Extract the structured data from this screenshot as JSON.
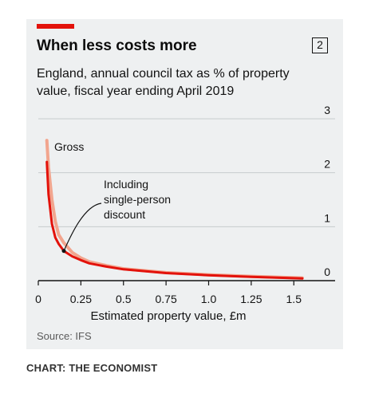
{
  "header": {
    "title": "When less costs more",
    "chart_number": "2",
    "subtitle": "England, annual council tax as % of property value, fiscal year ending April 2019"
  },
  "source": "Source: IFS",
  "credit": "CHART: THE ECONOMIST",
  "colors": {
    "background": "#eef0f1",
    "accent_red": "#e3120b",
    "gross_line": "#f2a58e",
    "net_line": "#e3120b",
    "gridline": "#c6cbcd"
  },
  "chart_data": {
    "type": "line",
    "title": "When less costs more",
    "subtitle": "England, annual council tax as % of property value, fiscal year ending April 2019",
    "xlabel": "Estimated property value, £m",
    "ylabel": "",
    "xlim": [
      0,
      1.6
    ],
    "ylim": [
      0,
      3
    ],
    "x_ticks": [
      "0",
      "0.25",
      "0.5",
      "0.75",
      "1.0",
      "1.25",
      "1.5"
    ],
    "y_ticks": [
      "0",
      "1",
      "2",
      "3"
    ],
    "grid": "horizontal",
    "series": [
      {
        "name": "Gross",
        "color": "#f2a58e",
        "x": [
          0.05,
          0.06,
          0.08,
          0.1,
          0.12,
          0.15,
          0.2,
          0.25,
          0.3,
          0.4,
          0.5,
          0.75,
          1.0,
          1.25,
          1.55
        ],
        "y": [
          2.6,
          2.1,
          1.5,
          1.1,
          0.85,
          0.7,
          0.52,
          0.42,
          0.35,
          0.28,
          0.22,
          0.15,
          0.11,
          0.08,
          0.05
        ]
      },
      {
        "name": "Including single-person discount",
        "color": "#e3120b",
        "x": [
          0.05,
          0.06,
          0.08,
          0.1,
          0.12,
          0.15,
          0.2,
          0.25,
          0.3,
          0.4,
          0.5,
          0.75,
          1.0,
          1.25,
          1.55
        ],
        "y": [
          2.2,
          1.6,
          1.05,
          0.8,
          0.68,
          0.55,
          0.45,
          0.38,
          0.32,
          0.26,
          0.21,
          0.14,
          0.1,
          0.07,
          0.04
        ]
      }
    ],
    "annotations": [
      {
        "text": "Gross",
        "series": "Gross"
      },
      {
        "text": "Including\nsingle-person\ndiscount",
        "series": "Including single-person discount",
        "x": 0.15,
        "y": 0.55
      }
    ]
  }
}
